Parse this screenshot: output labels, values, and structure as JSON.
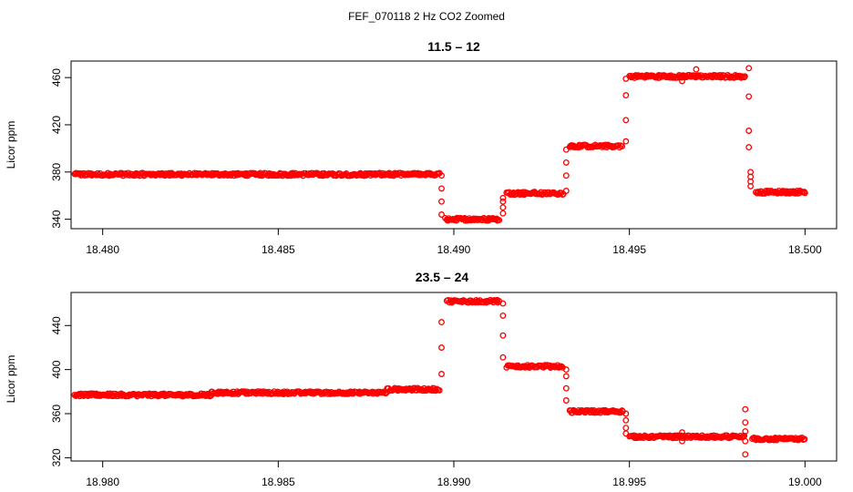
{
  "figure": {
    "title": "FEF_070118  2 Hz CO2 Zoomed"
  },
  "colors": {
    "points": "#ff0000",
    "axes": "#000000",
    "background": "#ffffff"
  },
  "chart_data": [
    {
      "type": "scatter",
      "title": "11.5 – 12",
      "xlabel": "",
      "ylabel": "Licor ppm",
      "xlim": [
        18.4791,
        18.5009
      ],
      "ylim": [
        332,
        474
      ],
      "x_ticks": [
        18.48,
        18.485,
        18.49,
        18.495,
        18.5
      ],
      "x_tick_labels": [
        "18.480",
        "18.485",
        "18.490",
        "18.495",
        "18.500"
      ],
      "y_ticks": [
        340,
        380,
        420,
        460
      ],
      "y_tick_labels": [
        "340",
        "380",
        "420",
        "460"
      ],
      "grid": false,
      "series": [
        {
          "marker": "open-circle",
          "color": "#ff0000",
          "plateaus": [
            {
              "x_start": 18.4792,
              "x_end": 18.4896,
              "y": 378
            },
            {
              "x_start": 18.4898,
              "x_end": 18.4913,
              "y": 340
            },
            {
              "x_start": 18.4915,
              "x_end": 18.4931,
              "y": 362
            },
            {
              "x_start": 18.4933,
              "x_end": 18.4948,
              "y": 402
            },
            {
              "x_start": 18.495,
              "x_end": 18.4983,
              "y": 461
            },
            {
              "x_start": 18.4986,
              "x_end": 18.5,
              "y": 363
            }
          ],
          "transitions": [
            {
              "x": 18.48965,
              "y": [
                377,
                366,
                355,
                344
              ]
            },
            {
              "x": 18.48975,
              "y": [
                341
              ]
            },
            {
              "x": 18.4914,
              "y": [
                345,
                350,
                355,
                358
              ]
            },
            {
              "x": 18.4932,
              "y": [
                364,
                377,
                388,
                399
              ]
            },
            {
              "x": 18.4949,
              "y": [
                406,
                424,
                445,
                459
              ]
            },
            {
              "x": 18.4984,
              "y": [
                468,
                444,
                415,
                401
              ]
            },
            {
              "x": 18.49845,
              "y": [
                380,
                376,
                372,
                368
              ]
            }
          ],
          "outliers": [
            {
              "x": 18.4969,
              "y": 467
            },
            {
              "x": 18.4965,
              "y": 457
            }
          ]
        }
      ]
    },
    {
      "type": "scatter",
      "title": "23.5 – 24",
      "xlabel": "",
      "ylabel": "Licor ppm",
      "xlim": [
        18.9791,
        19.0009
      ],
      "ylim": [
        317,
        470
      ],
      "x_ticks": [
        18.98,
        18.985,
        18.99,
        18.995,
        19.0
      ],
      "x_tick_labels": [
        "18.980",
        "18.985",
        "18.990",
        "18.995",
        "19.000"
      ],
      "y_ticks": [
        320,
        360,
        400,
        440
      ],
      "y_tick_labels": [
        "320",
        "360",
        "400",
        "440"
      ],
      "grid": false,
      "series": [
        {
          "marker": "open-circle",
          "color": "#ff0000",
          "plateaus": [
            {
              "x_start": 18.9792,
              "x_end": 18.9831,
              "y": 377
            },
            {
              "x_start": 18.9831,
              "x_end": 18.9881,
              "y": 379
            },
            {
              "x_start": 18.9881,
              "x_end": 18.9896,
              "y": 382
            },
            {
              "x_start": 18.9898,
              "x_end": 18.9913,
              "y": 462
            },
            {
              "x_start": 18.9915,
              "x_end": 18.9931,
              "y": 403
            },
            {
              "x_start": 18.9933,
              "x_end": 18.9948,
              "y": 362
            },
            {
              "x_start": 18.995,
              "x_end": 18.9983,
              "y": 339
            },
            {
              "x_start": 18.9985,
              "x_end": 19.0,
              "y": 337
            }
          ],
          "transitions": [
            {
              "x": 18.98965,
              "y": [
                396,
                420,
                443
              ]
            },
            {
              "x": 18.9914,
              "y": [
                460,
                449,
                431,
                411
              ]
            },
            {
              "x": 18.9932,
              "y": [
                400,
                394,
                383,
                372
              ]
            },
            {
              "x": 18.9949,
              "y": [
                360,
                354,
                347,
                342
              ]
            },
            {
              "x": 18.9983,
              "y": [
                364,
                352,
                344,
                335,
                323
              ]
            }
          ],
          "outliers": [
            {
              "x": 18.9965,
              "y": 343
            },
            {
              "x": 18.9965,
              "y": 335
            }
          ]
        }
      ]
    }
  ]
}
